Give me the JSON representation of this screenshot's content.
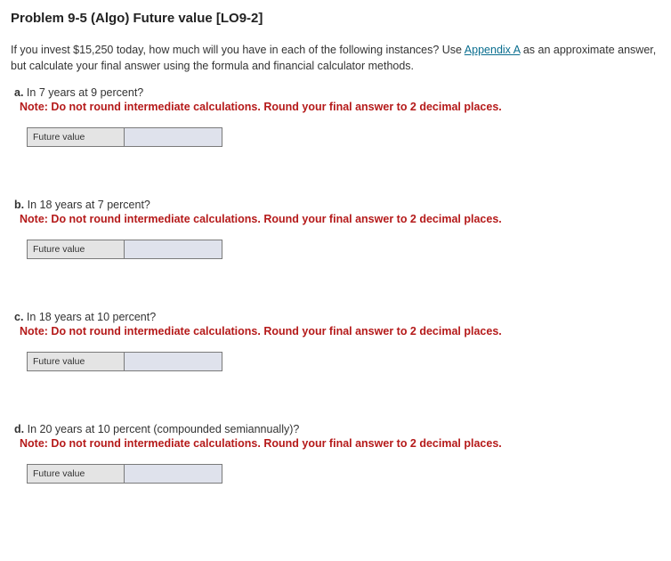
{
  "title": "Problem 9-5 (Algo) Future value [LO9-2]",
  "intro_pre": "If you invest $15,250 today, how much will you have in each of the following instances? Use ",
  "intro_link": "Appendix A",
  "intro_post": " as an approximate answer, but calculate your final answer using the formula and financial calculator methods.",
  "note_text": "Note: Do not round intermediate calculations. Round your final answer to 2 decimal places.",
  "fv_label": "Future value",
  "parts": [
    {
      "letter": "a.",
      "question": "In 7 years at 9 percent?"
    },
    {
      "letter": "b.",
      "question": "In 18 years at 7 percent?"
    },
    {
      "letter": "c.",
      "question": "In 18 years at 10 percent?"
    },
    {
      "letter": "d.",
      "question": "In 20 years at 10 percent (compounded semiannually)?"
    }
  ]
}
